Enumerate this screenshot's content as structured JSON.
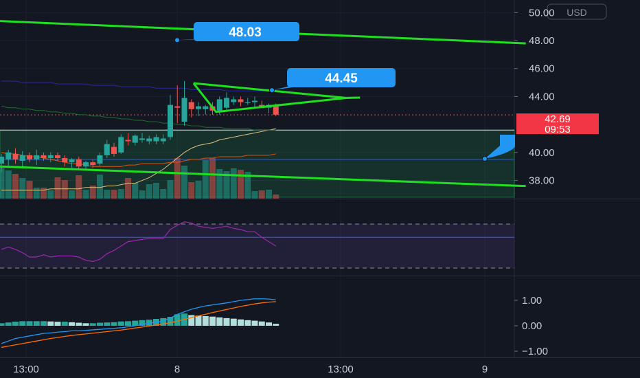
{
  "currency": "USD",
  "price_badge": {
    "price": "42.69",
    "countdown": "09:53",
    "color": "#f23645"
  },
  "callouts": [
    {
      "label": "48.03",
      "value": 48.03
    },
    {
      "label": "44.45",
      "value": 44.45
    }
  ],
  "colors": {
    "background": "#131722",
    "bull": "#26a69a",
    "bear": "#ef5350",
    "trendline": "#1fe01f",
    "callout": "#2196f3",
    "rsi": "#9c27b0",
    "macd_line": "#2196f3",
    "signal_line": "#ff6d00"
  },
  "chart_data": [
    {
      "type": "candlestick",
      "y_axis_labels": [
        "50.00",
        "48.00",
        "46.00",
        "44.00",
        "40.00",
        "38.00"
      ],
      "ylim": [
        36.7,
        50.9
      ],
      "x_axis_labels": [
        "13:00",
        "8",
        "13:00",
        "9"
      ],
      "candles": [
        {
          "o": 39.2,
          "h": 39.9,
          "l": 38.6,
          "c": 39.7
        },
        {
          "o": 39.5,
          "h": 40.2,
          "l": 38.9,
          "c": 40.0
        },
        {
          "o": 39.9,
          "h": 40.3,
          "l": 39.2,
          "c": 39.5
        },
        {
          "o": 39.4,
          "h": 40.1,
          "l": 39.0,
          "c": 39.8
        },
        {
          "o": 39.8,
          "h": 40.0,
          "l": 39.3,
          "c": 39.5
        },
        {
          "o": 39.5,
          "h": 40.2,
          "l": 39.1,
          "c": 39.8
        },
        {
          "o": 39.8,
          "h": 40.0,
          "l": 39.4,
          "c": 39.6
        },
        {
          "o": 39.6,
          "h": 40.0,
          "l": 39.3,
          "c": 39.8
        },
        {
          "o": 39.8,
          "h": 40.0,
          "l": 39.4,
          "c": 39.6
        },
        {
          "o": 39.6,
          "h": 39.8,
          "l": 39.0,
          "c": 39.3
        },
        {
          "o": 39.3,
          "h": 39.6,
          "l": 38.9,
          "c": 39.5
        },
        {
          "o": 39.5,
          "h": 39.7,
          "l": 38.8,
          "c": 39.0
        },
        {
          "o": 39.0,
          "h": 39.4,
          "l": 38.7,
          "c": 39.3
        },
        {
          "o": 39.3,
          "h": 39.5,
          "l": 38.9,
          "c": 39.1
        },
        {
          "o": 39.2,
          "h": 40.0,
          "l": 39.0,
          "c": 39.8
        },
        {
          "o": 39.8,
          "h": 40.9,
          "l": 39.6,
          "c": 40.6
        },
        {
          "o": 40.4,
          "h": 40.7,
          "l": 39.7,
          "c": 39.9
        },
        {
          "o": 40.0,
          "h": 41.3,
          "l": 39.9,
          "c": 41.1
        },
        {
          "o": 40.9,
          "h": 41.4,
          "l": 40.5,
          "c": 40.8
        },
        {
          "o": 40.7,
          "h": 41.3,
          "l": 40.5,
          "c": 41.2
        },
        {
          "o": 40.9,
          "h": 41.4,
          "l": 40.7,
          "c": 41.0
        },
        {
          "o": 40.8,
          "h": 41.2,
          "l": 40.6,
          "c": 41.0
        },
        {
          "o": 40.8,
          "h": 41.3,
          "l": 40.6,
          "c": 41.1
        },
        {
          "o": 40.8,
          "h": 41.3,
          "l": 40.6,
          "c": 41.0
        },
        {
          "o": 41.1,
          "h": 44.1,
          "l": 40.9,
          "c": 43.4
        },
        {
          "o": 43.3,
          "h": 44.8,
          "l": 42.1,
          "c": 43.2
        },
        {
          "o": 42.2,
          "h": 45.1,
          "l": 41.9,
          "c": 43.9
        },
        {
          "o": 43.6,
          "h": 43.8,
          "l": 42.5,
          "c": 43.1
        },
        {
          "o": 43.1,
          "h": 43.6,
          "l": 42.6,
          "c": 43.3
        },
        {
          "o": 43.1,
          "h": 43.4,
          "l": 42.7,
          "c": 43.3
        },
        {
          "o": 43.3,
          "h": 43.6,
          "l": 42.7,
          "c": 43.0
        },
        {
          "o": 43.0,
          "h": 44.0,
          "l": 42.7,
          "c": 43.8
        },
        {
          "o": 43.2,
          "h": 44.3,
          "l": 43.0,
          "c": 43.9
        },
        {
          "o": 43.6,
          "h": 44.0,
          "l": 43.4,
          "c": 43.8
        },
        {
          "o": 43.8,
          "h": 44.0,
          "l": 43.3,
          "c": 43.6
        },
        {
          "o": 43.6,
          "h": 43.9,
          "l": 43.4,
          "c": 43.6
        },
        {
          "o": 43.6,
          "h": 44.0,
          "l": 43.2,
          "c": 43.7
        },
        {
          "o": 43.4,
          "h": 43.7,
          "l": 43.2,
          "c": 43.3
        },
        {
          "o": 43.2,
          "h": 43.5,
          "l": 42.8,
          "c": 43.4
        },
        {
          "o": 43.4,
          "h": 43.5,
          "l": 42.6,
          "c": 42.7
        }
      ],
      "volume": [
        44,
        41,
        36,
        30,
        26,
        16,
        16,
        12,
        31,
        27,
        12,
        34,
        13,
        19,
        35,
        13,
        13,
        14,
        30,
        23,
        12,
        21,
        23,
        14,
        27,
        59,
        48,
        24,
        26,
        56,
        59,
        43,
        40,
        44,
        42,
        39,
        11,
        12,
        13,
        6
      ],
      "ma_lines": [
        {
          "color": "#e0c080",
          "values": [
            37.3,
            37.3,
            37.3,
            37.3,
            37.3,
            37.3,
            37.3,
            37.4,
            37.4,
            37.4,
            37.4,
            37.4,
            37.5,
            37.5,
            37.5,
            37.6,
            37.6,
            37.7,
            37.8,
            37.8,
            38.0,
            38.2,
            38.5,
            38.8,
            39.2,
            39.6,
            40.0,
            40.3,
            40.5,
            40.6,
            40.7,
            40.9,
            41.0,
            41.1,
            41.2,
            41.3,
            41.4,
            41.5,
            41.6,
            41.7
          ]
        },
        {
          "color": "#e65100",
          "values": [
            40.0,
            39.9,
            39.9,
            39.8,
            39.7,
            39.7,
            39.6,
            39.5,
            39.4,
            39.3,
            39.2,
            39.2,
            39.1,
            39.0,
            39.0,
            39.0,
            39.0,
            39.0,
            39.1,
            39.1,
            39.2,
            39.2,
            39.2,
            39.2,
            39.3,
            39.3,
            39.4,
            39.5,
            39.5,
            39.6,
            39.6,
            39.7,
            39.7,
            39.7,
            39.7,
            39.8,
            39.8,
            39.8,
            39.8,
            39.9
          ]
        },
        {
          "color": "#1f6e2f",
          "values": [
            43.3,
            43.2,
            43.2,
            43.1,
            43.1,
            43.0,
            43.0,
            42.9,
            42.9,
            42.8,
            42.8,
            42.7,
            42.7,
            42.6,
            42.6,
            42.5,
            42.5,
            42.4,
            42.4,
            42.3,
            42.3,
            42.2,
            42.2,
            42.1,
            42.1,
            42.0,
            42.0,
            41.9,
            41.9,
            41.8,
            41.8,
            41.8,
            41.7,
            41.7,
            41.7,
            41.7,
            41.6,
            41.6,
            41.6,
            41.6
          ]
        },
        {
          "color": "#2a2a9a",
          "values": [
            45.1,
            45.1,
            45.1,
            45.0,
            45.0,
            45.0,
            45.0,
            45.0,
            44.9,
            44.9,
            44.9,
            44.9,
            44.9,
            44.8,
            44.8,
            44.8,
            44.8,
            44.7,
            44.7,
            44.7,
            44.7,
            44.7,
            44.6,
            44.6,
            44.6,
            44.6,
            44.6,
            44.5,
            44.5,
            44.5,
            44.5,
            44.5,
            44.4,
            44.4,
            44.4,
            44.4,
            44.4,
            44.4,
            44.4,
            44.4
          ]
        }
      ],
      "channel_lines": [
        {
          "x0": -0.5,
          "y0": 49.4,
          "x1": 74.5,
          "y1": 47.8
        },
        {
          "x0": -0.5,
          "y0": 39.0,
          "x1": 74.5,
          "y1": 37.6
        }
      ],
      "triangle": [
        {
          "x": 27.3,
          "y": 44.95
        },
        {
          "x": 49.0,
          "y": 43.9
        },
        {
          "x": 30.5,
          "y": 42.9
        }
      ],
      "horizontal_lines": [
        {
          "value": 41.6,
          "color": "#ffffff"
        },
        {
          "value": 39.5,
          "color": "#2962ff"
        }
      ],
      "last_price": 42.69,
      "box": {
        "top": 41.6,
        "bottom": 36.8
      }
    },
    {
      "type": "line",
      "indicator": "RSI",
      "band": [
        30,
        70
      ],
      "midline": 50,
      "values": [
        47,
        49,
        47,
        44,
        40,
        40,
        42,
        40,
        41,
        41,
        41,
        40,
        37,
        36,
        38,
        43,
        46,
        50,
        54,
        55,
        56,
        57,
        57,
        57,
        65,
        69,
        72,
        71,
        68,
        67,
        66,
        67,
        68,
        66,
        65,
        63,
        63,
        58,
        54,
        50
      ]
    },
    {
      "type": "bar",
      "indicator": "MACD",
      "y_axis_labels": [
        "1.00",
        "0.00",
        "−1.00"
      ],
      "ylim": [
        -1.3,
        1.4
      ],
      "histogram": [
        0.1,
        0.13,
        0.16,
        0.18,
        0.18,
        0.18,
        0.18,
        0.17,
        0.16,
        0.16,
        0.14,
        0.12,
        0.1,
        0.1,
        0.12,
        0.13,
        0.14,
        0.17,
        0.18,
        0.2,
        0.22,
        0.24,
        0.27,
        0.3,
        0.35,
        0.45,
        0.48,
        0.42,
        0.4,
        0.38,
        0.36,
        0.33,
        0.3,
        0.28,
        0.25,
        0.22,
        0.2,
        0.17,
        0.13,
        0.08
      ],
      "macd": [
        -0.7,
        -0.6,
        -0.5,
        -0.45,
        -0.4,
        -0.35,
        -0.3,
        -0.28,
        -0.25,
        -0.23,
        -0.2,
        -0.2,
        -0.18,
        -0.16,
        -0.14,
        -0.12,
        -0.1,
        -0.08,
        -0.04,
        0.0,
        0.05,
        0.1,
        0.14,
        0.18,
        0.3,
        0.45,
        0.55,
        0.65,
        0.72,
        0.78,
        0.82,
        0.86,
        0.9,
        0.95,
        1.0,
        1.03,
        1.06,
        1.06,
        1.05,
        1.02
      ],
      "signal": [
        -0.85,
        -0.8,
        -0.75,
        -0.7,
        -0.65,
        -0.6,
        -0.55,
        -0.5,
        -0.46,
        -0.42,
        -0.38,
        -0.35,
        -0.32,
        -0.29,
        -0.26,
        -0.23,
        -0.2,
        -0.17,
        -0.13,
        -0.09,
        -0.05,
        -0.01,
        0.03,
        0.07,
        0.12,
        0.18,
        0.25,
        0.32,
        0.39,
        0.45,
        0.52,
        0.58,
        0.64,
        0.7,
        0.76,
        0.81,
        0.86,
        0.9,
        0.93,
        0.95
      ]
    }
  ]
}
